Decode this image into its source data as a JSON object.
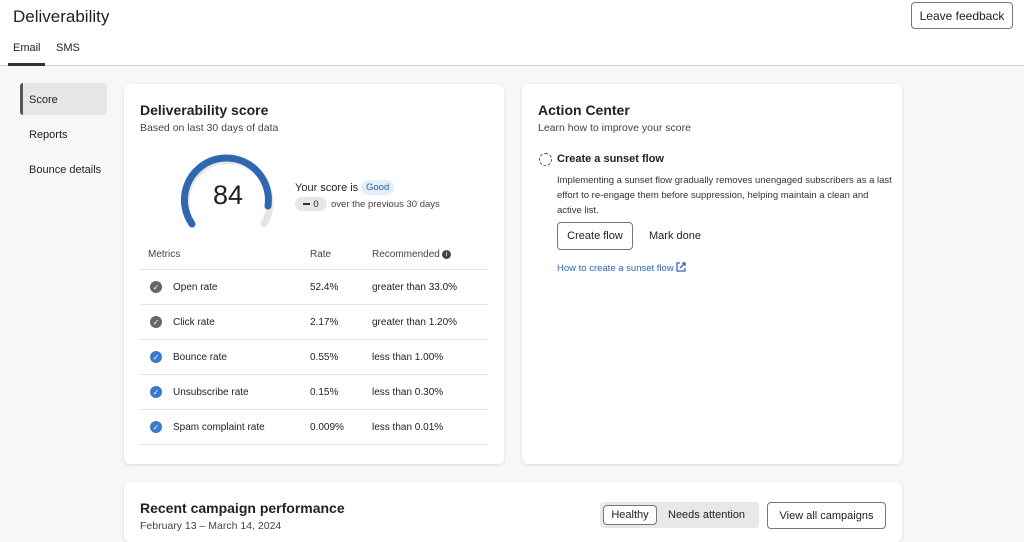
{
  "header": {
    "title": "Deliverability",
    "button": "Leave feedback"
  },
  "tabs": [
    "Email",
    "SMS"
  ],
  "nav": [
    "Score",
    "Reports",
    "Bounce details"
  ],
  "score_card": {
    "title": "Deliverability score",
    "subtitle": "Based on last 30 days of data",
    "score": "84",
    "score_label": "Your score is",
    "status": "Good",
    "change": "0",
    "change_text": "over the previous 30 days",
    "table": {
      "header": [
        "Metrics",
        "Rate",
        "Recommended"
      ],
      "rows": [
        [
          "Open rate",
          "52.4%",
          "greater than 33.0%"
        ],
        [
          "Click rate",
          "2.17%",
          "greater than 1.20%"
        ],
        [
          "Bounce rate",
          "0.55%",
          "less than 1.00%"
        ],
        [
          "Unsubscribe rate",
          "0.15%",
          "less than 0.30%"
        ],
        [
          "Spam complaint rate",
          "0.009%",
          "less than 0.01%"
        ]
      ]
    }
  },
  "action_center": {
    "title": "Action Center",
    "subtitle": "Learn how to improve your score",
    "item_title": "Create a sunset flow",
    "item_text": "Implementing a sunset flow gradually removes unengaged subscribers as a last effort to re-engage them before suppression, helping maintain a clean and active list.",
    "primary_button": "Create flow",
    "secondary_button": "Mark done",
    "link": "How to create a sunset flow"
  },
  "campaigns": {
    "title": "Recent campaign performance",
    "date_range": "February 13 – March 14, 2024",
    "filters": [
      "Healthy",
      "Needs attention"
    ],
    "button": "View all campaigns"
  }
}
